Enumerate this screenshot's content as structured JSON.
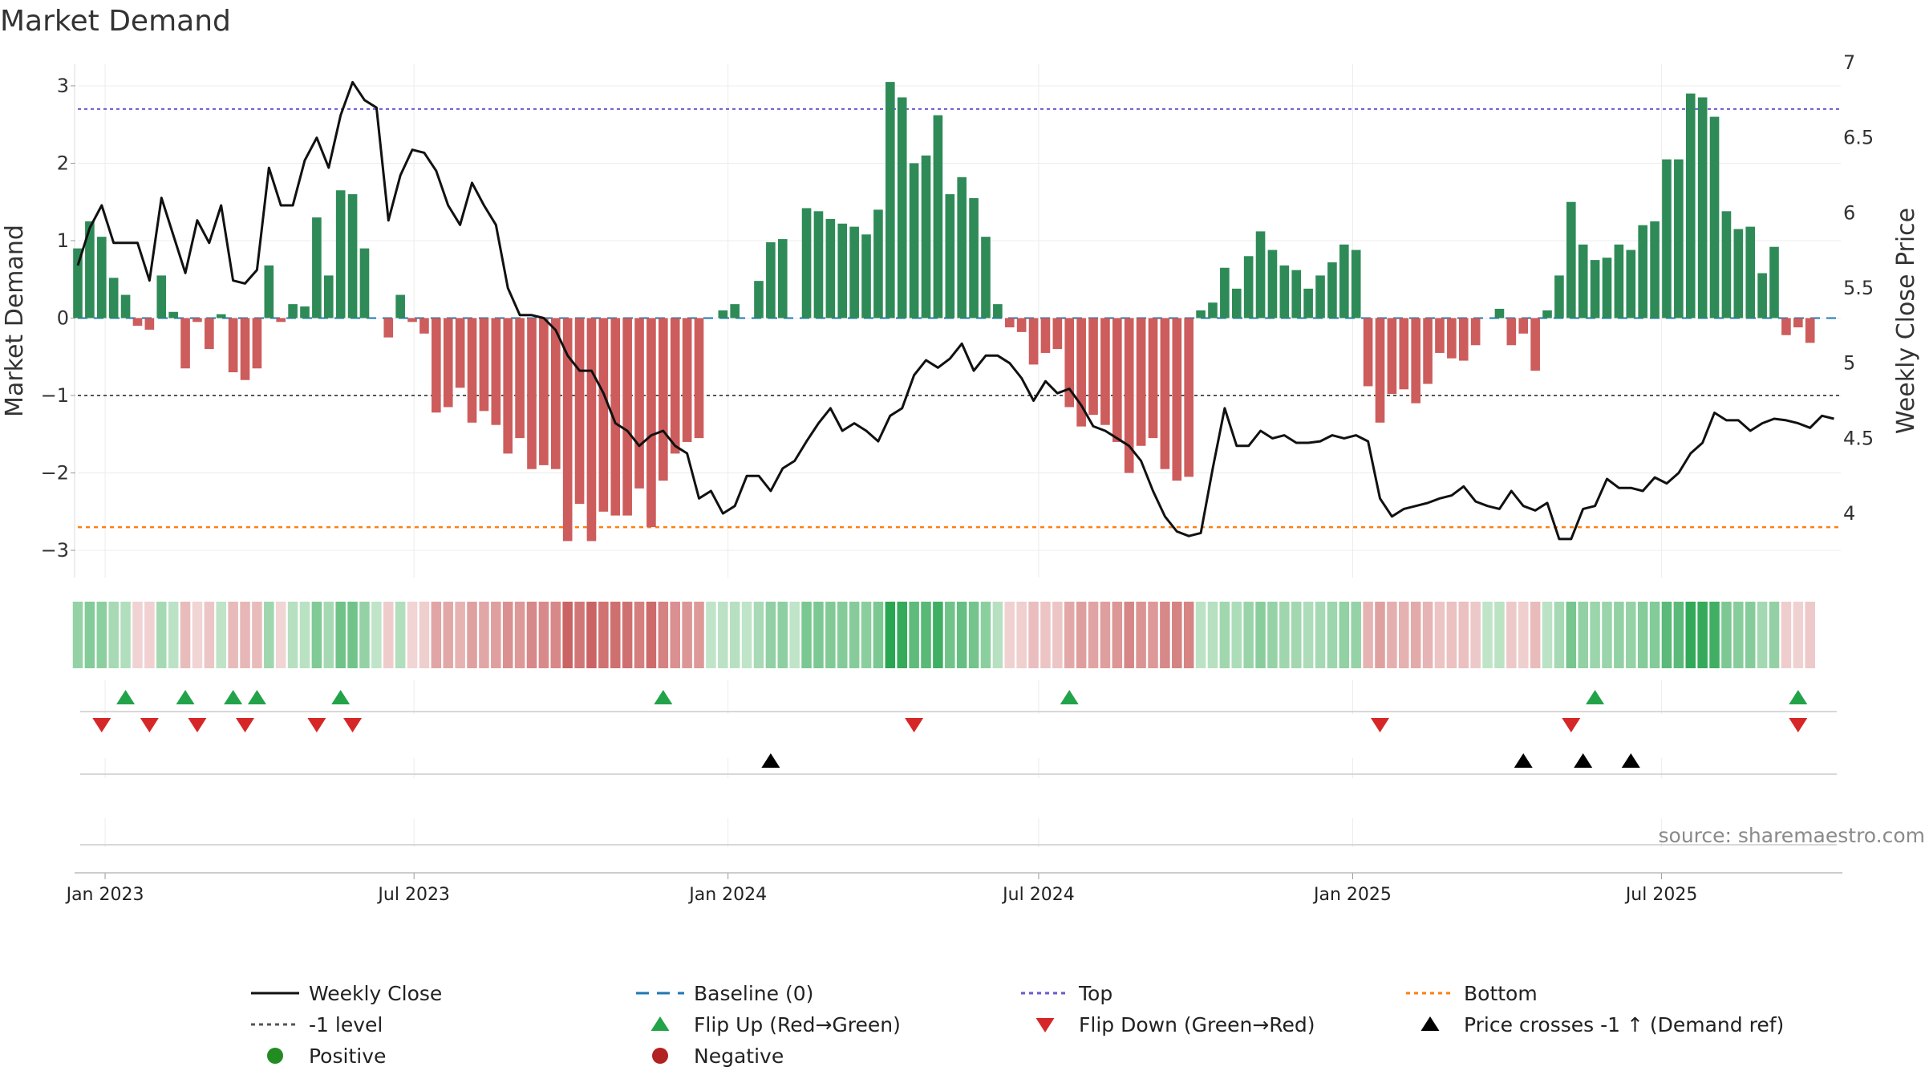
{
  "chart_data": {
    "type": "bar",
    "title": "Market Demand",
    "ylabel": "Market Demand",
    "y2label": "Weekly Close Price",
    "ylim": [
      -3.3,
      3.3
    ],
    "y2lim": [
      3.6,
      7.0
    ],
    "yticks": [
      3,
      2,
      1,
      0,
      -1,
      -2,
      -3
    ],
    "yticklabels": [
      "3",
      "2",
      "1",
      "0",
      "−1",
      "−2",
      "−3"
    ],
    "y2ticks": [
      7,
      6.5,
      6,
      5.5,
      5,
      4.5,
      4
    ],
    "y2ticklabels": [
      "7",
      "6.5",
      "6",
      "5.5",
      "5",
      "4.5",
      "4"
    ],
    "start_date": "2022-12-16",
    "x_end_date": "2025-10-14",
    "xticks": [
      {
        "date": "2023-01-01",
        "label": "Jan 2023"
      },
      {
        "date": "2023-07-01",
        "label": "Jul 2023"
      },
      {
        "date": "2024-01-01",
        "label": "Jan 2024"
      },
      {
        "date": "2024-07-01",
        "label": "Jul 2024"
      },
      {
        "date": "2025-01-01",
        "label": "Jan 2025"
      },
      {
        "date": "2025-07-01",
        "label": "Jul 2025"
      }
    ],
    "ref_lines": {
      "top": 2.7,
      "bottom": -2.7,
      "level": -1,
      "baseline": 0
    },
    "series": [
      {
        "name": "Market Demand",
        "values": [
          0.9,
          1.25,
          1.05,
          0.52,
          0.3,
          -0.1,
          -0.15,
          0.55,
          0.08,
          -0.65,
          -0.05,
          -0.4,
          0.05,
          -0.7,
          -0.8,
          -0.65,
          0.68,
          -0.05,
          0.18,
          0.15,
          1.3,
          0.55,
          1.65,
          1.6,
          0.9,
          0.0,
          -0.25,
          0.3,
          -0.05,
          -0.2,
          -1.22,
          -1.15,
          -0.9,
          -1.35,
          -1.2,
          -1.38,
          -1.75,
          -1.55,
          -1.95,
          -1.9,
          -1.95,
          -2.88,
          -2.4,
          -2.88,
          -2.5,
          -2.55,
          -2.55,
          -2.2,
          -2.7,
          -2.1,
          -1.75,
          -1.6,
          -1.55,
          0.0,
          0.1,
          0.18,
          0.0,
          0.48,
          0.98,
          1.02,
          0.0,
          1.42,
          1.38,
          1.28,
          1.22,
          1.18,
          1.08,
          1.4,
          3.05,
          2.85,
          2.0,
          2.1,
          2.62,
          1.6,
          1.82,
          1.55,
          1.05,
          0.18,
          -0.12,
          -0.18,
          -0.6,
          -0.45,
          -0.4,
          -1.15,
          -1.4,
          -1.25,
          -1.38,
          -1.6,
          -2.0,
          -1.65,
          -1.55,
          -1.95,
          -2.1,
          -2.05,
          0.1,
          0.2,
          0.65,
          0.38,
          0.8,
          1.12,
          0.88,
          0.68,
          0.62,
          0.38,
          0.55,
          0.72,
          0.95,
          0.88,
          -0.88,
          -1.35,
          -0.98,
          -0.92,
          -1.1,
          -0.85,
          -0.45,
          -0.52,
          -0.55,
          -0.35,
          0.0,
          0.12,
          -0.35,
          -0.2,
          -0.68,
          0.1,
          0.55,
          1.5,
          0.95,
          0.75,
          0.78,
          0.95,
          0.88,
          1.2,
          1.25,
          2.05,
          2.05,
          2.9,
          2.85,
          2.6,
          1.38,
          1.15,
          1.18,
          0.58,
          0.92,
          -0.22,
          -0.12,
          -0.32
        ]
      },
      {
        "name": "Weekly Close",
        "values": [
          5.65,
          5.9,
          6.05,
          5.8,
          5.8,
          5.8,
          5.55,
          6.1,
          5.85,
          5.6,
          5.95,
          5.8,
          6.05,
          5.55,
          5.53,
          5.62,
          6.3,
          6.05,
          6.05,
          6.35,
          6.5,
          6.3,
          6.65,
          6.87,
          6.75,
          6.7,
          5.95,
          6.25,
          6.42,
          6.4,
          6.28,
          6.05,
          5.92,
          6.2,
          6.05,
          5.92,
          5.5,
          5.32,
          5.32,
          5.3,
          5.22,
          5.05,
          4.95,
          4.95,
          4.8,
          4.6,
          4.55,
          4.45,
          4.52,
          4.55,
          4.45,
          4.4,
          4.1,
          4.15,
          4.0,
          4.05,
          4.25,
          4.25,
          4.15,
          4.3,
          4.35,
          4.48,
          4.6,
          4.7,
          4.55,
          4.6,
          4.55,
          4.48,
          4.65,
          4.7,
          4.92,
          5.02,
          4.97,
          5.03,
          5.13,
          4.95,
          5.05,
          5.05,
          5.0,
          4.9,
          4.75,
          4.88,
          4.8,
          4.83,
          4.72,
          4.58,
          4.55,
          4.5,
          4.45,
          4.35,
          4.15,
          3.98,
          3.88,
          3.85,
          3.87,
          4.3,
          4.7,
          4.45,
          4.45,
          4.55,
          4.5,
          4.52,
          4.47,
          4.47,
          4.48,
          4.52,
          4.5,
          4.52,
          4.48,
          4.1,
          3.98,
          4.03,
          4.05,
          4.07,
          4.1,
          4.12,
          4.18,
          4.08,
          4.05,
          4.03,
          4.15,
          4.05,
          4.02,
          4.07,
          3.83,
          3.83,
          4.03,
          4.05,
          4.23,
          4.17,
          4.17,
          4.15,
          4.24,
          4.2,
          4.27,
          4.4,
          4.47,
          4.67,
          4.62,
          4.62,
          4.55,
          4.6,
          4.63,
          4.62,
          4.6,
          4.57,
          4.65,
          4.63
        ]
      }
    ],
    "flip_up_weeks": [
      4,
      9,
      13,
      15,
      22,
      49,
      83,
      127,
      144
    ],
    "flip_down_weeks": [
      2,
      6,
      10,
      14,
      20,
      23,
      70,
      109,
      125,
      144
    ],
    "cross_up_weeks": [
      58,
      121,
      126,
      130
    ]
  },
  "colors": {
    "bar_positive": "#2e8b57",
    "bar_negative": "#cd5c5c",
    "price_line": "#111111",
    "baseline": "#1f77b4",
    "top_line": "#6a5acd",
    "bottom_line": "#ff7f0e",
    "level_line": "#555555",
    "flip_up": "#22a34a",
    "flip_down": "#d62728",
    "cross_marker": "#000000",
    "positive_dot": "#228b22",
    "negative_dot": "#b22222"
  },
  "legend": [
    {
      "label": "Weekly Close",
      "kind": "line-solid",
      "color": "#111111"
    },
    {
      "label": "Baseline (0)",
      "kind": "line-dash",
      "color": "#1f77b4"
    },
    {
      "label": "Top",
      "kind": "line-dot",
      "color": "#6a5acd"
    },
    {
      "label": "Bottom",
      "kind": "line-dot",
      "color": "#ff7f0e"
    },
    {
      "label": "-1 level",
      "kind": "line-dot",
      "color": "#555555"
    },
    {
      "label": "Flip Up (Red→Green)",
      "kind": "tri-up",
      "color": "#22a34a"
    },
    {
      "label": "Flip Down (Green→Red)",
      "kind": "tri-down",
      "color": "#d62728"
    },
    {
      "label": "Price crosses -1 ↑ (Demand ref)",
      "kind": "tri-up",
      "color": "#000000"
    },
    {
      "label": "Positive",
      "kind": "dot",
      "color": "#228b22"
    },
    {
      "label": "Negative",
      "kind": "dot",
      "color": "#b22222"
    }
  ],
  "source": "source: sharemaestro.com"
}
